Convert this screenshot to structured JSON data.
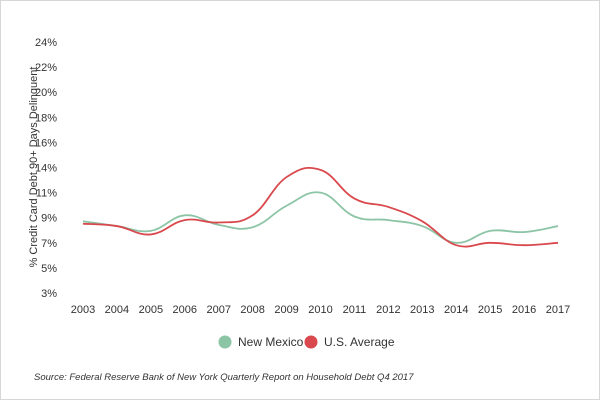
{
  "chart_data": {
    "type": "line",
    "categories": [
      "2003",
      "2004",
      "2005",
      "2006",
      "2007",
      "2008",
      "2009",
      "2010",
      "2011",
      "2012",
      "2013",
      "2014",
      "2015",
      "2016",
      "2017"
    ],
    "yticks": [
      "24%",
      "22%",
      "20%",
      "18%",
      "16%",
      "14%",
      "11%",
      "9%",
      "7%",
      "5%",
      "3%"
    ],
    "ylabel": "% Credit Card Debt 90+ Days Delinquent",
    "ylim": [
      3,
      24
    ],
    "grid": false,
    "legend_position": "bottom",
    "series": [
      {
        "name": "New Mexico",
        "color": "#8cc4a6",
        "values": [
          9.0,
          8.6,
          8.2,
          9.5,
          8.7,
          8.5,
          10.3,
          11.4,
          9.4,
          9.1,
          8.6,
          7.2,
          8.2,
          8.1,
          8.6
        ]
      },
      {
        "name": "U.S. Average",
        "color": "#d9484c",
        "values": [
          8.8,
          8.6,
          7.9,
          9.1,
          8.9,
          9.5,
          12.7,
          13.3,
          10.9,
          10.2,
          9.0,
          7.0,
          7.2,
          7.0,
          7.2
        ]
      }
    ]
  },
  "source": "Source: Federal Reserve Bank of New York Quarterly Report on Household Debt Q4 2017"
}
